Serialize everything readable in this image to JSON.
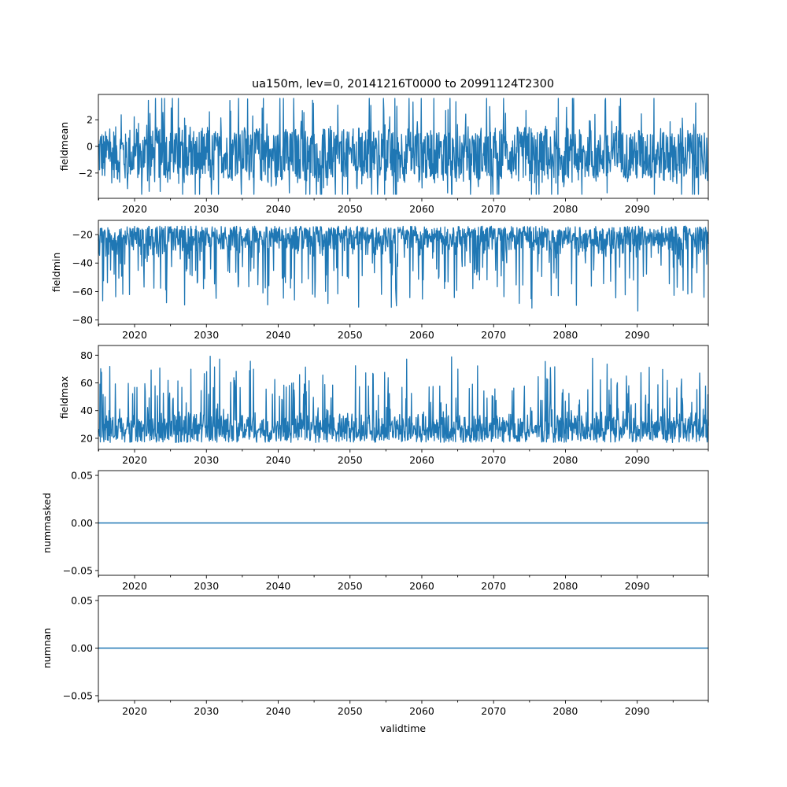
{
  "chart_data": {
    "type": "line",
    "title": "ua150m, lev=0, 20141216T0000 to 20991124T2300",
    "xlabel": "validtime",
    "x_range": [
      "2014-12-16T00:00",
      "2099-11-24T23:00"
    ],
    "x_ticks": [
      "2020",
      "2030",
      "2040",
      "2050",
      "2060",
      "2070",
      "2080",
      "2090"
    ],
    "x_tick_years": [
      2020,
      2030,
      2040,
      2050,
      2060,
      2070,
      2080,
      2090
    ],
    "x_minor_tick_step_years": 5,
    "line_color": "#1f77b4",
    "grid": false,
    "panels": [
      {
        "ylabel": "fieldmean",
        "ylim": [
          -3.9,
          3.9
        ],
        "y_ticks": [
          2,
          0,
          -2
        ],
        "y_tick_labels": [
          "2",
          "0",
          "−2"
        ],
        "series_summary": {
          "typical_low": -2.6,
          "typical_high": 1.3,
          "baseline": -0.7,
          "min": -3.6,
          "max": 3.6
        }
      },
      {
        "ylabel": "fieldmin",
        "ylim": [
          -83,
          -10
        ],
        "y_ticks": [
          -20,
          -40,
          -60,
          -80
        ],
        "y_tick_labels": [
          "−20",
          "−40",
          "−60",
          "−80"
        ],
        "series_summary": {
          "typical_low": -38,
          "typical_high": -14,
          "baseline": -25,
          "min": -79,
          "max": -13
        }
      },
      {
        "ylabel": "fieldmax",
        "ylim": [
          12,
          87
        ],
        "y_ticks": [
          80,
          60,
          40,
          20
        ],
        "y_tick_labels": [
          "80",
          "60",
          "40",
          "20"
        ],
        "series_summary": {
          "typical_low": 17,
          "typical_high": 44,
          "baseline": 28,
          "min": 15,
          "max": 83
        }
      },
      {
        "ylabel": "nummasked",
        "ylim": [
          -0.055,
          0.055
        ],
        "y_ticks": [
          0.05,
          0.0,
          -0.05
        ],
        "y_tick_labels": [
          "0.05",
          "0.00",
          "−0.05"
        ],
        "constant_value": 0.0
      },
      {
        "ylabel": "numnan",
        "ylim": [
          -0.055,
          0.055
        ],
        "y_ticks": [
          0.05,
          0.0,
          -0.05
        ],
        "y_tick_labels": [
          "0.05",
          "0.00",
          "−0.05"
        ],
        "constant_value": 0.0
      }
    ]
  }
}
